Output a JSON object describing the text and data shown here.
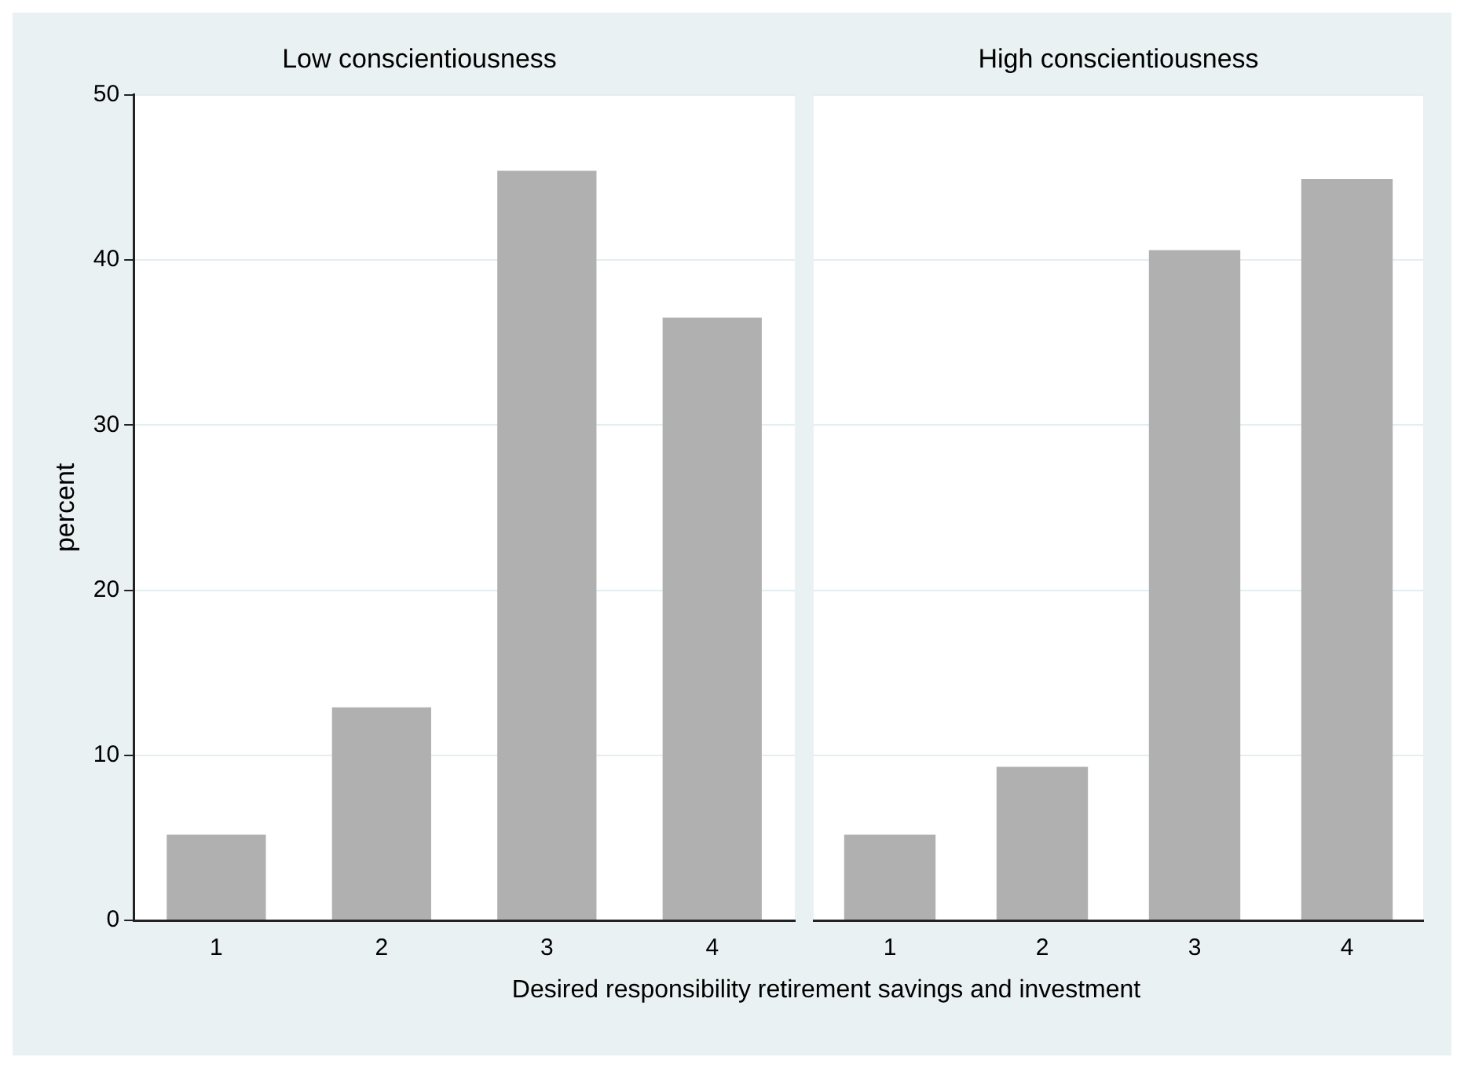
{
  "chart_data": [
    {
      "type": "bar",
      "title": "Low conscientiousness",
      "xlabel": "Desired responsibility retirement savings and investment",
      "ylabel": "percent",
      "categories": [
        "1",
        "2",
        "3",
        "4"
      ],
      "values": [
        5.2,
        12.9,
        45.4,
        36.5
      ],
      "color": "#b0b0b0",
      "ylim": [
        0,
        50
      ],
      "yticks": [
        0,
        10,
        20,
        30,
        40,
        50
      ],
      "grid": "y"
    },
    {
      "type": "bar",
      "title": "High conscientiousness",
      "categories": [
        "1",
        "2",
        "3",
        "4"
      ],
      "values": [
        5.2,
        9.3,
        40.6,
        44.9
      ],
      "color": "#b0b0b0",
      "ylim": [
        0,
        50
      ],
      "yticks": [
        0,
        10,
        20,
        30,
        40,
        50
      ],
      "grid": "y",
      "tick_labels": "x"
    }
  ]
}
